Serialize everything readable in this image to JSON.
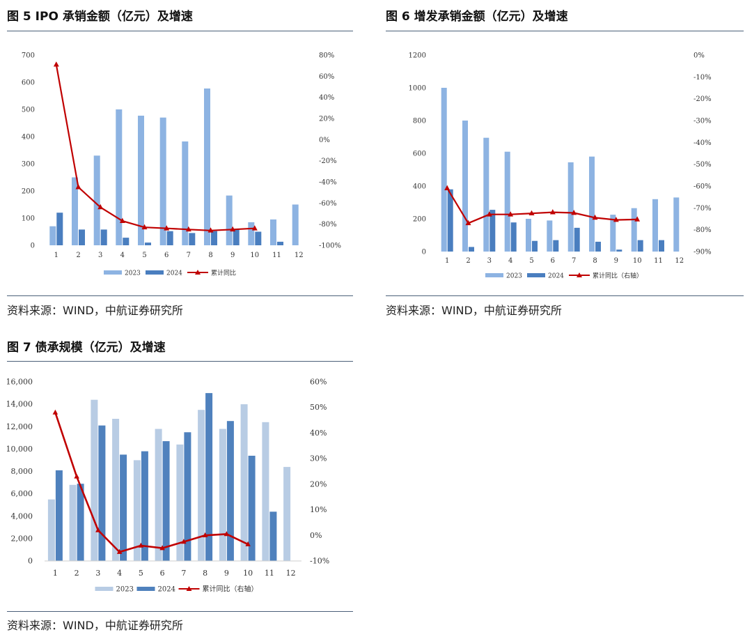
{
  "panels": [
    {
      "title": "图 5 IPO 承销金额（亿元）及增速",
      "source": "资料来源：WIND，中航证券研究所"
    },
    {
      "title": "图 6 增发承销金额（亿元）及增速",
      "source": "资料来源：WIND，中航证券研究所"
    },
    {
      "title": "图 7 债承规模（亿元）及增速",
      "source": "资料来源：WIND，中航证券研究所"
    }
  ],
  "colors": {
    "bar2023_a": "#8db3e2",
    "bar2024_a": "#4a7ebf",
    "bar2023_b": "#b8cce4",
    "bar2024_b": "#4f81bd",
    "line": "#c00000",
    "rule": "#4a5f78"
  },
  "chart_data": [
    {
      "type": "bar",
      "categories": [
        "1",
        "2",
        "3",
        "4",
        "5",
        "6",
        "7",
        "8",
        "9",
        "10",
        "11",
        "12"
      ],
      "series": [
        {
          "name": "2023",
          "kind": "bar",
          "axis": "left",
          "values": [
            70,
            250,
            330,
            500,
            477,
            470,
            382,
            577,
            183,
            85,
            95,
            150
          ]
        },
        {
          "name": "2024",
          "kind": "bar",
          "axis": "left",
          "values": [
            120,
            58,
            58,
            28,
            10,
            52,
            45,
            52,
            60,
            50,
            13,
            null
          ]
        },
        {
          "name": "累计同比",
          "kind": "line",
          "axis": "right",
          "values": [
            71,
            -45,
            -64,
            -77,
            -83,
            -84,
            -85,
            -86,
            -85,
            -84,
            null,
            null
          ]
        }
      ],
      "ylim": [
        0,
        700
      ],
      "yticks": [
        "0",
        "100",
        "200",
        "300",
        "400",
        "500",
        "600",
        "700"
      ],
      "y2lim": [
        -100,
        80
      ],
      "y2ticks": [
        "-100%",
        "-80%",
        "-60%",
        "-40%",
        "-20%",
        "0%",
        "20%",
        "40%",
        "60%",
        "80%"
      ],
      "legend": [
        "2023",
        "2024",
        "累计同比"
      ],
      "legend_position": "bottom"
    },
    {
      "type": "bar",
      "categories": [
        "1",
        "2",
        "3",
        "4",
        "5",
        "6",
        "7",
        "8",
        "9",
        "10",
        "11",
        "12"
      ],
      "series": [
        {
          "name": "2023",
          "kind": "bar",
          "axis": "left",
          "values": [
            1000,
            800,
            695,
            610,
            200,
            190,
            545,
            580,
            225,
            265,
            320,
            330
          ]
        },
        {
          "name": "2024",
          "kind": "bar",
          "axis": "left",
          "values": [
            380,
            28,
            255,
            178,
            65,
            70,
            145,
            60,
            12,
            70,
            70,
            null
          ]
        },
        {
          "name": "累计同比（右轴）",
          "kind": "line",
          "axis": "right",
          "values": [
            -61,
            -77,
            -73,
            -73,
            -72.5,
            -72,
            -72.3,
            -74.5,
            -75.5,
            -75.3,
            null,
            null
          ]
        }
      ],
      "ylim": [
        0,
        1200
      ],
      "yticks": [
        "0",
        "200",
        "400",
        "600",
        "800",
        "1000",
        "1200"
      ],
      "y2lim": [
        -90,
        0
      ],
      "y2ticks": [
        "-90%",
        "-80%",
        "-70%",
        "-60%",
        "-50%",
        "-40%",
        "-30%",
        "-20%",
        "-10%",
        "0%"
      ],
      "legend": [
        "2023",
        "2024",
        "累计同比（右轴）"
      ],
      "legend_position": "bottom"
    },
    {
      "type": "bar",
      "categories": [
        "1",
        "2",
        "3",
        "4",
        "5",
        "6",
        "7",
        "8",
        "9",
        "10",
        "11",
        "12"
      ],
      "series": [
        {
          "name": "2023",
          "kind": "bar",
          "axis": "left",
          "values": [
            5500,
            6800,
            14400,
            12700,
            9000,
            11800,
            10400,
            13500,
            11800,
            14000,
            12400,
            8400
          ]
        },
        {
          "name": "2024",
          "kind": "bar",
          "axis": "left",
          "values": [
            8100,
            6900,
            12100,
            9500,
            9800,
            10700,
            11500,
            15000,
            12500,
            9400,
            4400,
            null
          ]
        },
        {
          "name": "累计同比（右轴）",
          "kind": "line",
          "axis": "right",
          "values": [
            48,
            23,
            2,
            -6.5,
            -4,
            -5,
            -2.5,
            0,
            0.5,
            -3.5,
            null,
            null
          ]
        }
      ],
      "ylim": [
        0,
        16000
      ],
      "yticks": [
        "0",
        "2,000",
        "4,000",
        "6,000",
        "8,000",
        "10,000",
        "12,000",
        "14,000",
        "16,000"
      ],
      "y2lim": [
        -10,
        60
      ],
      "y2ticks": [
        "-10%",
        "0%",
        "10%",
        "20%",
        "30%",
        "40%",
        "50%",
        "60%"
      ],
      "legend": [
        "2023",
        "2024",
        "累计同比（右轴）"
      ],
      "legend_position": "bottom"
    }
  ]
}
